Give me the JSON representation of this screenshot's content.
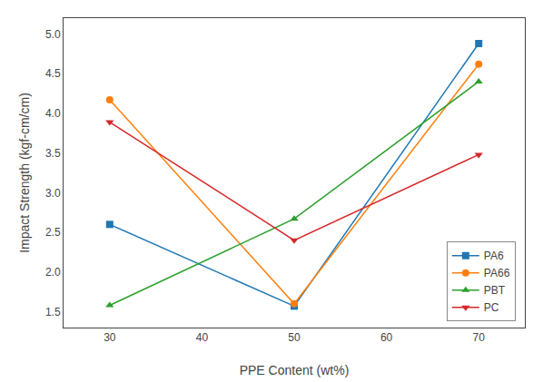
{
  "chart_data": {
    "type": "line",
    "xlabel": "PPE Content (wt%)",
    "ylabel": "Impact Strength (kgf-cm/cm)",
    "x": [
      30,
      50,
      70
    ],
    "series": [
      {
        "name": "PA6",
        "values": [
          2.6,
          1.57,
          4.88
        ],
        "marker": "square",
        "line_style": "solid"
      },
      {
        "name": "PA66",
        "values": [
          4.17,
          1.6,
          4.62
        ],
        "marker": "circle",
        "line_style": "solid"
      },
      {
        "name": "PBT",
        "values": [
          1.58,
          2.67,
          4.4
        ],
        "marker": "triangle-up",
        "line_style": "solid"
      },
      {
        "name": "PC",
        "values": [
          3.89,
          2.4,
          3.48
        ],
        "marker": "triangle-down",
        "line_style": "solid"
      }
    ],
    "xlim": [
      25,
      75
    ],
    "ylim": [
      1.3,
      5.2
    ],
    "xticks": [
      30,
      40,
      50,
      60,
      70
    ],
    "yticks": [
      1.5,
      {
        "value": 2.0,
        "label": "2.0"
      },
      2.5,
      {
        "value": 3.0,
        "label": "3.0"
      },
      3.5,
      {
        "value": 4.0,
        "label": "4.0"
      },
      4.5,
      {
        "value": 5.0,
        "label": "5.0"
      }
    ],
    "grid": false,
    "legend": "lower right"
  }
}
